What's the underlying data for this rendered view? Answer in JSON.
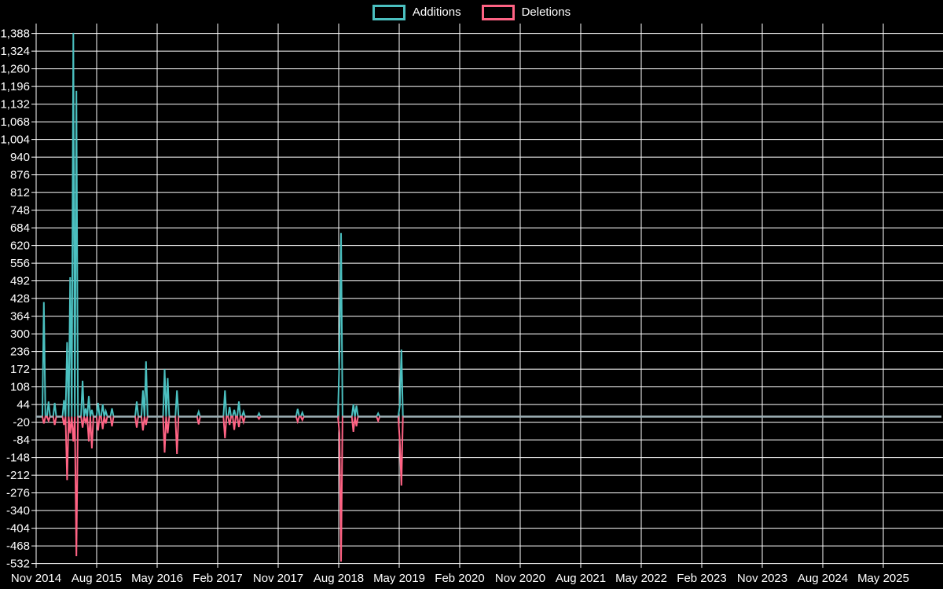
{
  "legend": {
    "additions_label": "Additions",
    "deletions_label": "Deletions"
  },
  "colors": {
    "background": "#000000",
    "grid": "#ffffff",
    "text": "#ffffff",
    "additions": "#4bc0c0",
    "deletions": "#ff6384",
    "zero_line": "#9db0b6"
  },
  "chart_data": {
    "type": "line",
    "title": "",
    "xlabel": "",
    "ylabel": "",
    "legend_position": "top",
    "grid": true,
    "x_axis": {
      "labels": [
        "Nov 2014",
        "Aug 2015",
        "May 2016",
        "Feb 2017",
        "Nov 2017",
        "Aug 2018",
        "May 2019",
        "Feb 2020",
        "Nov 2020",
        "Aug 2021",
        "May 2022",
        "Feb 2023",
        "Nov 2023",
        "Aug 2024",
        "May 2025"
      ],
      "unit": "week",
      "weeks_total": 586,
      "weeks_per_label": 39
    },
    "y_axis": {
      "ticks": [
        1388,
        1324,
        1260,
        1196,
        1132,
        1068,
        1004,
        940,
        876,
        812,
        748,
        684,
        620,
        556,
        492,
        428,
        364,
        300,
        236,
        172,
        108,
        44,
        -20,
        -84,
        -148,
        -212,
        -276,
        -340,
        -404,
        -468,
        -532
      ],
      "min": -532,
      "max": 1388,
      "tick_step": 64
    },
    "series": [
      {
        "name": "Additions",
        "color": "#4bc0c0",
        "baseline": 0
      },
      {
        "name": "Deletions",
        "color": "#ff6384",
        "baseline": 0
      }
    ],
    "spikes": [
      {
        "week": 5,
        "additions": 415,
        "deletions": -25
      },
      {
        "week": 8,
        "additions": 55,
        "deletions": -15
      },
      {
        "week": 12,
        "additions": 50,
        "deletions": -30
      },
      {
        "week": 18,
        "additions": 60,
        "deletions": -30
      },
      {
        "week": 20,
        "additions": 270,
        "deletions": -230
      },
      {
        "week": 22,
        "additions": 505,
        "deletions": -60
      },
      {
        "week": 24,
        "additions": 1390,
        "deletions": -90
      },
      {
        "week": 26,
        "additions": 1180,
        "deletions": -505
      },
      {
        "week": 30,
        "additions": 130,
        "deletions": -40
      },
      {
        "week": 32,
        "additions": 30,
        "deletions": -20
      },
      {
        "week": 34,
        "additions": 75,
        "deletions": -90
      },
      {
        "week": 36,
        "additions": 25,
        "deletions": -115
      },
      {
        "week": 40,
        "additions": 50,
        "deletions": -50
      },
      {
        "week": 43,
        "additions": 45,
        "deletions": -45
      },
      {
        "week": 45,
        "additions": 20,
        "deletions": -25
      },
      {
        "week": 49,
        "additions": 30,
        "deletions": -35
      },
      {
        "week": 65,
        "additions": 55,
        "deletions": -40
      },
      {
        "week": 69,
        "additions": 95,
        "deletions": -50
      },
      {
        "week": 71,
        "additions": 200,
        "deletions": -30
      },
      {
        "week": 83,
        "additions": 172,
        "deletions": -130
      },
      {
        "week": 85,
        "additions": 140,
        "deletions": -60
      },
      {
        "week": 91,
        "additions": 95,
        "deletions": -135
      },
      {
        "week": 105,
        "additions": 18,
        "deletions": -28
      },
      {
        "week": 122,
        "additions": 95,
        "deletions": -78
      },
      {
        "week": 125,
        "additions": 35,
        "deletions": -30
      },
      {
        "week": 128,
        "additions": 25,
        "deletions": -48
      },
      {
        "week": 131,
        "additions": 55,
        "deletions": -38
      },
      {
        "week": 134,
        "additions": 18,
        "deletions": -20
      },
      {
        "week": 144,
        "additions": 12,
        "deletions": -8
      },
      {
        "week": 169,
        "additions": 28,
        "deletions": -18
      },
      {
        "week": 172,
        "additions": 15,
        "deletions": -12
      },
      {
        "week": 196,
        "additions": 220,
        "deletions": -60
      },
      {
        "week": 197,
        "additions": 665,
        "deletions": -525
      },
      {
        "week": 205,
        "additions": 45,
        "deletions": -55
      },
      {
        "week": 207,
        "additions": 40,
        "deletions": -35
      },
      {
        "week": 221,
        "additions": 12,
        "deletions": -15
      },
      {
        "week": 235,
        "additions": 40,
        "deletions": -90
      },
      {
        "week": 236,
        "additions": 243,
        "deletions": -250
      }
    ]
  }
}
